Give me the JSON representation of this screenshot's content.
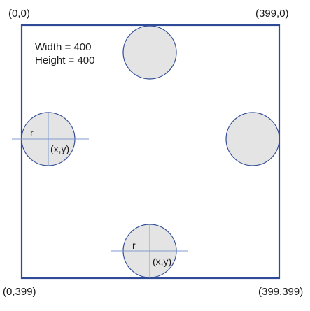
{
  "corners": {
    "top_left": "(0,0)",
    "top_right": "(399,0)",
    "bottom_left": "(0,399)",
    "bottom_right": "(399,399)"
  },
  "info": {
    "width_text": "Width = 400",
    "height_text": "Height = 400"
  },
  "circle_labels": {
    "radius": "r",
    "center": "(x,y)"
  },
  "colors": {
    "border": "#2f4b97",
    "circle_fill": "#e4e4e4",
    "circle_stroke": "#2f4b97",
    "crosshair": "#7f9bd0",
    "text": "#1a1a1a"
  }
}
